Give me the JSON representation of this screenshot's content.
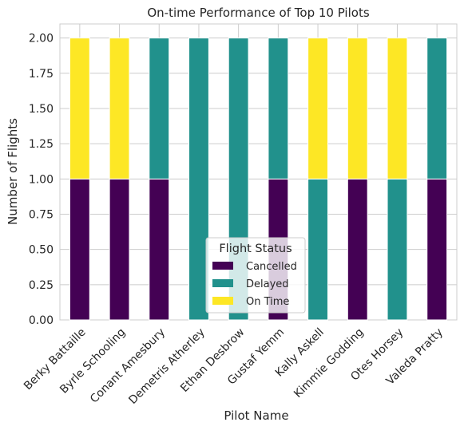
{
  "chart_data": {
    "type": "bar",
    "stacked": true,
    "title": "On-time Performance of Top 10 Pilots",
    "xlabel": "Pilot Name",
    "ylabel": "Number of Flights",
    "ylim": [
      0,
      2.1
    ],
    "yticks": [
      "0.00",
      "0.25",
      "0.50",
      "0.75",
      "1.00",
      "1.25",
      "1.50",
      "1.75",
      "2.00"
    ],
    "grid": true,
    "legend": {
      "title": "Flight Status",
      "placement": "bottom-center"
    },
    "categories": [
      "Berky Battaille",
      "Byrle Schooling",
      "Conant Amesbury",
      "Demetris Atherley",
      "Ethan Desbrow",
      "Gustaf Yemm",
      "Kally Askell",
      "Kimmie Godding",
      "Otes Horsey",
      "Valeda Pratty"
    ],
    "series": [
      {
        "name": "Cancelled",
        "color": "#440154",
        "values": [
          1,
          1,
          1,
          0,
          0,
          1,
          0,
          1,
          0,
          1
        ]
      },
      {
        "name": "Delayed",
        "color": "#21918c",
        "values": [
          0,
          0,
          1,
          2,
          2,
          1,
          1,
          0,
          1,
          1
        ]
      },
      {
        "name": "On Time",
        "color": "#fde725",
        "values": [
          1,
          1,
          0,
          0,
          0,
          0,
          1,
          1,
          1,
          0
        ]
      }
    ]
  }
}
